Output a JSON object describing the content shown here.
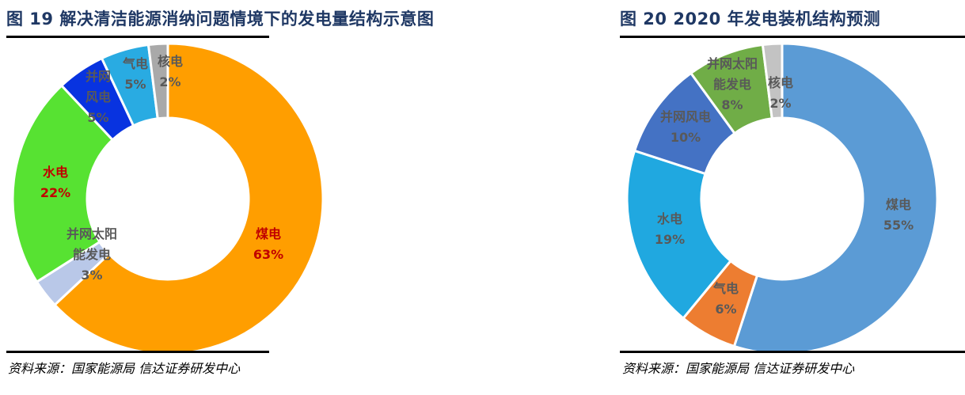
{
  "theme": {
    "background": "#FFFFFF",
    "title_color": "#1F3864",
    "rule_color": "#000000",
    "label_gray": "#595959",
    "label_red": "#C00000",
    "slice_gap_color": "#FFFFFF"
  },
  "figures": [
    {
      "id": "figure-19",
      "title": "图 19 解决清洁能源消纳问题情境下的发电量结构示意图",
      "source": "资料来源：国家能源局 信达证券研发中心"
    },
    {
      "id": "figure-20",
      "title": "图 20 2020 年发电装机结构预测",
      "source": "资料来源：国家能源局 信达证券研发中心"
    }
  ],
  "chart_data": [
    {
      "type": "pie",
      "subtype": "donut",
      "title": "图 19 解决清洁能源消纳问题情境下的发电量结构示意图",
      "source": "资料来源：国家能源局 信达证券研发中心",
      "unit": "%",
      "start_angle_deg": 0,
      "direction": "clockwise",
      "donut_hole_ratio": 0.52,
      "legend": "none",
      "slices": [
        {
          "key": "coal",
          "name": "煤电",
          "value": 63,
          "color": "#FF9E00",
          "label_lines": [
            "煤电",
            "63%"
          ],
          "label_color": "#C00000"
        },
        {
          "key": "solar",
          "name": "并网太阳能发电",
          "value": 3,
          "color": "#B9C8E8",
          "label_lines": [
            "并网太阳",
            "能发电",
            "3%"
          ],
          "label_color": "#595959"
        },
        {
          "key": "hydro",
          "name": "水电",
          "value": 22,
          "color": "#57E232",
          "label_lines": [
            "水电",
            "22%"
          ],
          "label_color": "#C00000"
        },
        {
          "key": "wind",
          "name": "并网风电",
          "value": 5,
          "color": "#0833E0",
          "label_lines": [
            "并网",
            "风电",
            "5%"
          ],
          "label_color": "#595959"
        },
        {
          "key": "gas",
          "name": "气电",
          "value": 5,
          "color": "#29ABE2",
          "label_lines": [
            "气电",
            "5%"
          ],
          "label_color": "#595959"
        },
        {
          "key": "nuclear",
          "name": "核电",
          "value": 2,
          "color": "#A9A9A9",
          "label_lines": [
            "核电",
            "2%"
          ],
          "label_color": "#595959"
        }
      ]
    },
    {
      "type": "pie",
      "subtype": "donut",
      "title": "图 20 2020 年发电装机结构预测",
      "source": "资料来源：国家能源局 信达证券研发中心",
      "unit": "%",
      "start_angle_deg": 0,
      "direction": "clockwise",
      "donut_hole_ratio": 0.52,
      "legend": "none",
      "slices": [
        {
          "key": "coal",
          "name": "煤电",
          "value": 55,
          "color": "#5B9BD5",
          "label_lines": [
            "煤电",
            "55%"
          ],
          "label_color": "#595959"
        },
        {
          "key": "gas",
          "name": "气电",
          "value": 6,
          "color": "#ED7D31",
          "label_lines": [
            "气电",
            "6%"
          ],
          "label_color": "#595959"
        },
        {
          "key": "hydro",
          "name": "水电",
          "value": 19,
          "color": "#20A8E0",
          "label_lines": [
            "水电",
            "19%"
          ],
          "label_color": "#595959"
        },
        {
          "key": "wind",
          "name": "并网风电",
          "value": 10,
          "color": "#4472C4",
          "label_lines": [
            "并网风电",
            "10%"
          ],
          "label_color": "#595959"
        },
        {
          "key": "solar",
          "name": "并网太阳能发电",
          "value": 8,
          "color": "#70AD47",
          "label_lines": [
            "并网太阳",
            "能发电",
            "8%"
          ],
          "label_color": "#595959"
        },
        {
          "key": "nuclear",
          "name": "核电",
          "value": 2,
          "color": "#C3C3C3",
          "label_lines": [
            "核电",
            "2%"
          ],
          "label_color": "#595959"
        }
      ]
    }
  ]
}
